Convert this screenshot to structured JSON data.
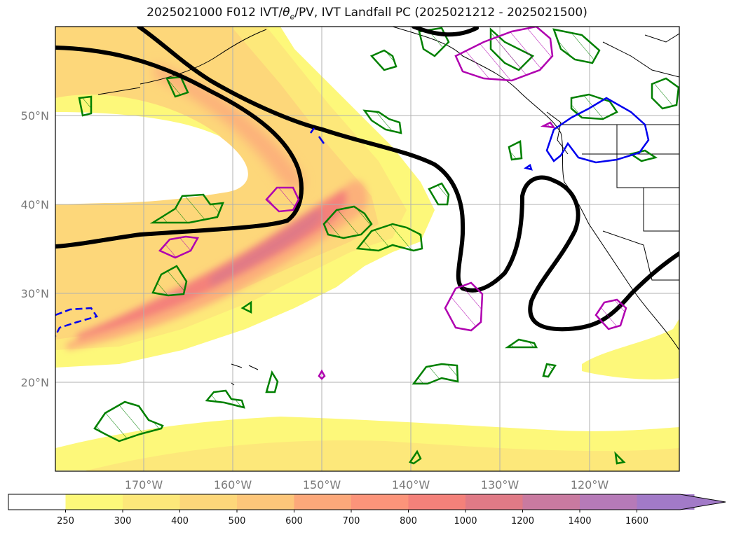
{
  "title_parts": {
    "prefix": "2025021000 F012 IVT/",
    "theta": "θ",
    "theta_sub": "e",
    "suffix": "/PV, IVT Landfall PC (2025021212 - 2025021500)"
  },
  "map": {
    "lon_range": [
      -180,
      -110
    ],
    "lat_range": [
      10,
      60
    ],
    "lat_ticks": [
      "50°N",
      "40°N",
      "30°N",
      "20°N"
    ],
    "lon_ticks": [
      "170°W",
      "160°W",
      "150°W",
      "140°W",
      "130°W",
      "120°W"
    ],
    "grid": true
  },
  "colorbar": {
    "levels": [
      "250",
      "300",
      "400",
      "500",
      "600",
      "700",
      "800",
      "1000",
      "1200",
      "1400",
      "1600"
    ],
    "colors": [
      "#ffffff",
      "#fdf87a",
      "#fde87a",
      "#fdd77a",
      "#fdc67a",
      "#fca87a",
      "#fc947a",
      "#f4817a",
      "#e07a86",
      "#c97aa0",
      "#b67ab8",
      "#a27ac8"
    ],
    "extend": "max"
  },
  "legend_colors": {
    "pv_contour": "#000000",
    "theta_e_contour": "#008000",
    "landfall_contour_positive": "#b000b0",
    "landfall_contour_negative": "#0000ee"
  }
}
